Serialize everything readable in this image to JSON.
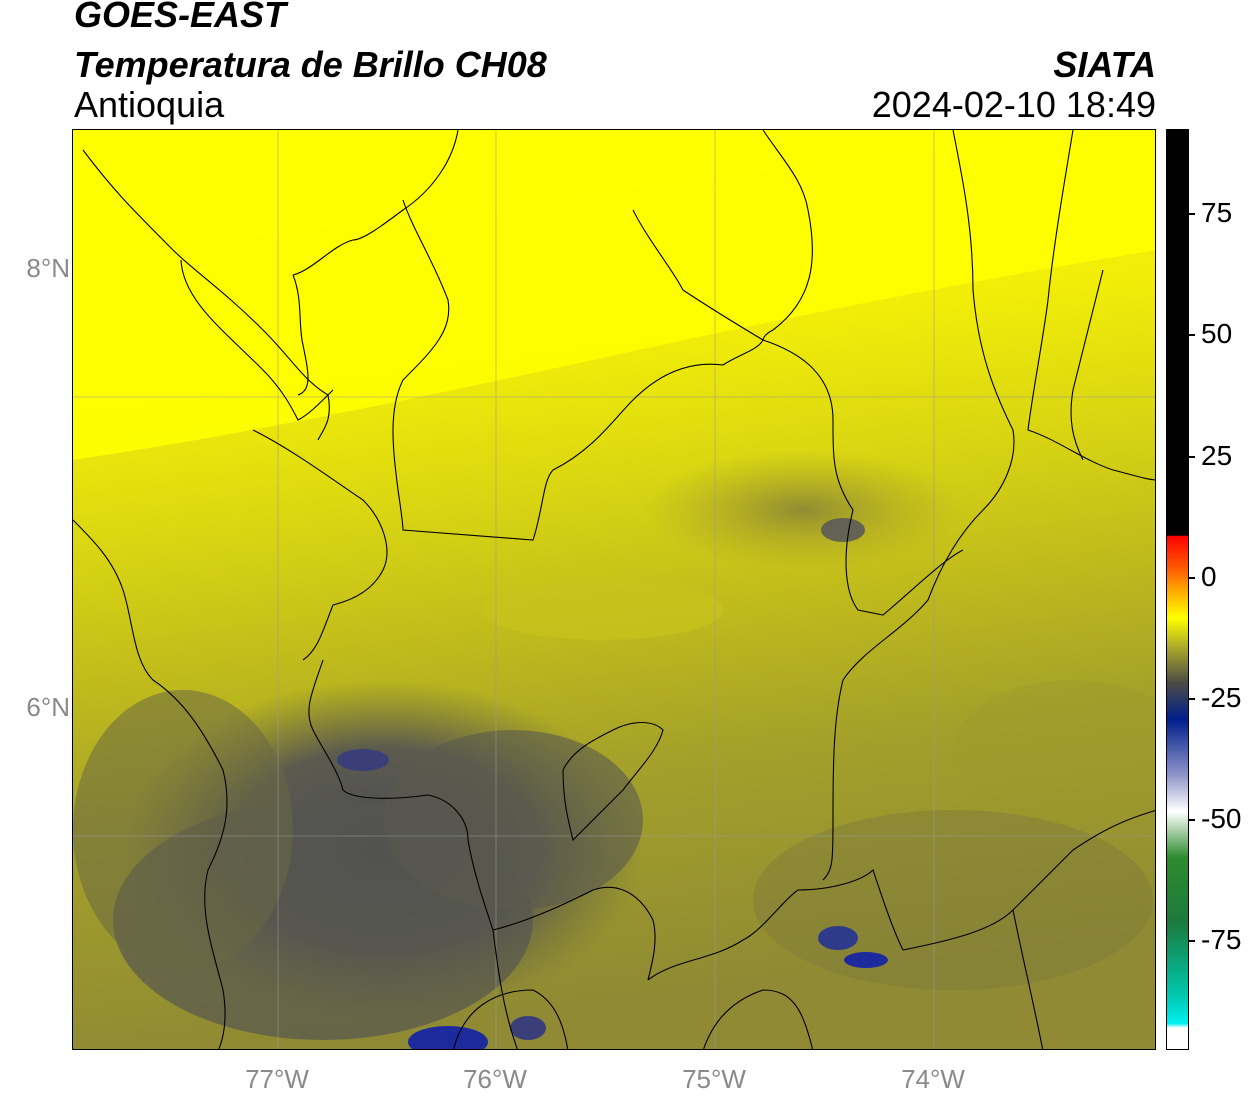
{
  "header": {
    "satellite": "GOES-EAST",
    "product": "Temperatura de Brillo CH08",
    "region": "Antioquia",
    "organization": "SIATA",
    "datetime": "2024-02-10 18:49"
  },
  "map": {
    "lat_labels": [
      "8°N",
      "6°N"
    ],
    "lon_labels": [
      "77°W",
      "76°W",
      "75°W",
      "74°W"
    ],
    "gridlines": true,
    "field": "brightness temperature (°C)",
    "dominant_colors": {
      "north_warm": "#ffff00",
      "central": "#c8c41c",
      "south_cool": "#5a5a4c",
      "coldest_cells": "#1c2a8c"
    }
  },
  "colorbar": {
    "ticks": [
      "75",
      "50",
      "25",
      "0",
      "-25",
      "-50",
      "-75"
    ],
    "range": [
      -95,
      92
    ],
    "colors": {
      "warm_top": "#000000",
      "red": "#ff0000",
      "orange": "#ff9900",
      "yellow": "#ffff00",
      "olive": "#4c4c44",
      "navy": "#001f8c",
      "white": "#ffffff",
      "green": "#2e8b2e",
      "cyan": "#00e5e5"
    }
  }
}
